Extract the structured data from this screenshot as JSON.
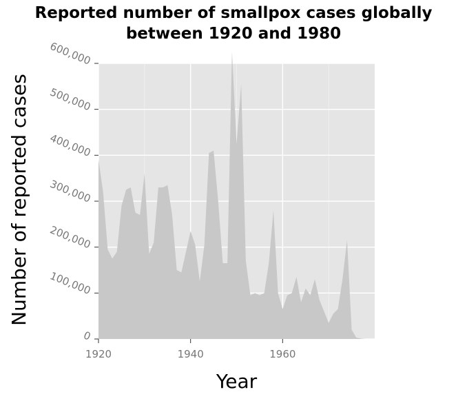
{
  "chart_data": {
    "type": "area",
    "title": [
      "Reported number of smallpox cases globally",
      "between 1920 and 1980"
    ],
    "xlabel": "Year",
    "ylabel": "Number of reported cases",
    "xlim": [
      1920,
      1980
    ],
    "ylim": [
      0,
      600000
    ],
    "xticks": [
      1920,
      1940,
      1960
    ],
    "x_ticklabels": [
      "1920",
      "1940",
      "1960"
    ],
    "yticks": [
      0,
      100000,
      200000,
      300000,
      400000,
      500000,
      600000
    ],
    "y_ticklabels": [
      "0",
      "100,000",
      "200,000",
      "300,000",
      "400,000",
      "500,000",
      "600,000"
    ],
    "grid": true,
    "fill_color": "#c8c8c8",
    "background_color": "#e5e5e5",
    "x": [
      1920,
      1921,
      1922,
      1923,
      1924,
      1925,
      1926,
      1927,
      1928,
      1929,
      1930,
      1931,
      1932,
      1933,
      1934,
      1935,
      1936,
      1937,
      1938,
      1939,
      1940,
      1941,
      1942,
      1943,
      1944,
      1945,
      1946,
      1947,
      1948,
      1949,
      1950,
      1951,
      1952,
      1953,
      1954,
      1955,
      1956,
      1957,
      1958,
      1959,
      1960,
      1961,
      1962,
      1963,
      1964,
      1965,
      1966,
      1967,
      1968,
      1969,
      1970,
      1971,
      1972,
      1973,
      1974,
      1975,
      1976,
      1977,
      1978,
      1979,
      1980
    ],
    "values": [
      390000,
      320000,
      195000,
      175000,
      190000,
      290000,
      325000,
      330000,
      275000,
      270000,
      360000,
      185000,
      210000,
      330000,
      330000,
      335000,
      270000,
      150000,
      145000,
      190000,
      235000,
      205000,
      125000,
      205000,
      405000,
      410000,
      300000,
      165000,
      165000,
      625000,
      425000,
      555000,
      170000,
      95000,
      100000,
      95000,
      100000,
      165000,
      280000,
      100000,
      65000,
      95000,
      100000,
      135000,
      80000,
      110000,
      95000,
      130000,
      85000,
      60000,
      35000,
      55000,
      65000,
      130000,
      215000,
      20000,
      3000,
      1000,
      0,
      0,
      0
    ]
  }
}
